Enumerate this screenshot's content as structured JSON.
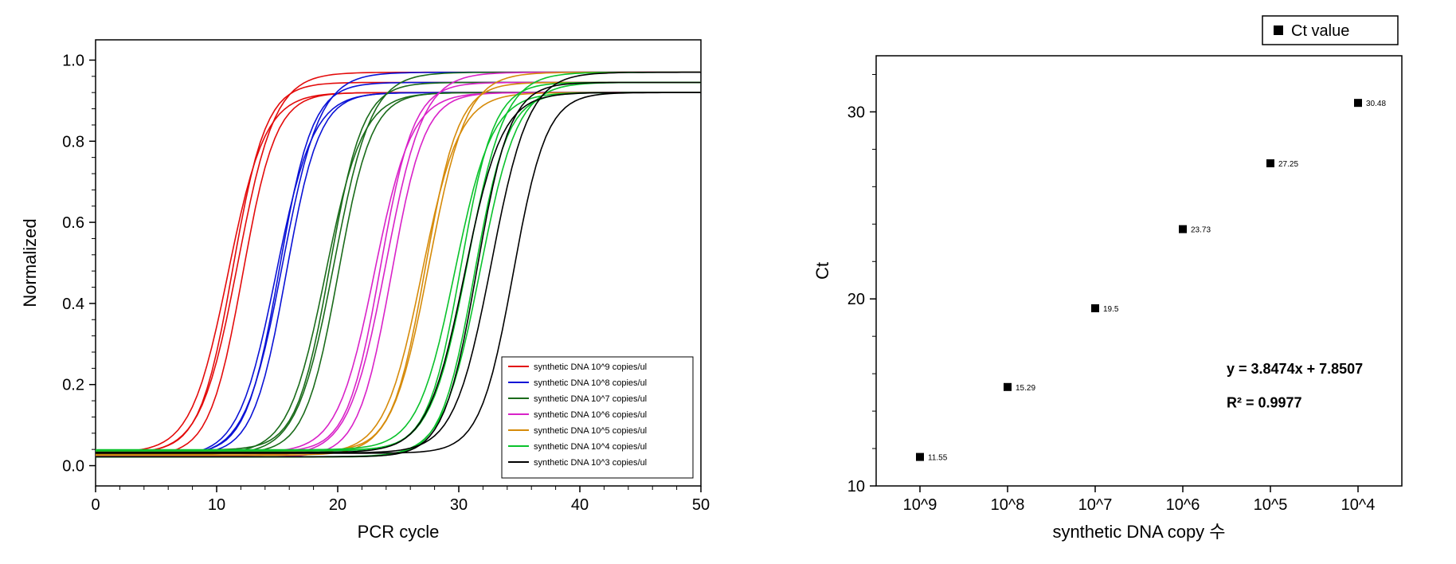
{
  "left_chart": {
    "type": "line",
    "xlabel": "PCR cycle",
    "ylabel": "Normalized",
    "label_fontsize": 22,
    "tick_fontsize": 20,
    "xlim": [
      0,
      50
    ],
    "ylim": [
      -0.05,
      1.05
    ],
    "xtick_step": 10,
    "ytick_step": 0.2,
    "plot_bg": "#ffffff",
    "axis_color": "#000000",
    "line_width": 1.6,
    "series": [
      {
        "label": "synthetic DNA 10^9 copies/ul",
        "color": "#e30b0b",
        "ct": 11.55,
        "replicate_offsets": [
          -0.6,
          -0.2,
          0.2,
          0.6
        ]
      },
      {
        "label": "synthetic DNA 10^8 copies/ul",
        "color": "#0a12d6",
        "ct": 15.29,
        "replicate_offsets": [
          -0.4,
          -0.1,
          0.15,
          0.45
        ]
      },
      {
        "label": "synthetic DNA 10^7 copies/ul",
        "color": "#1a6b1a",
        "ct": 19.5,
        "replicate_offsets": [
          -0.5,
          -0.15,
          0.2,
          0.55
        ]
      },
      {
        "label": "synthetic DNA 10^6 copies/ul",
        "color": "#d922c8",
        "ct": 23.73,
        "replicate_offsets": [
          -0.7,
          -0.2,
          0.25,
          0.7
        ]
      },
      {
        "label": "synthetic DNA 10^5 copies/ul",
        "color": "#d68b0a",
        "ct": 27.25,
        "replicate_offsets": [
          -0.3,
          0,
          0.3
        ]
      },
      {
        "label": "synthetic DNA 10^4 copies/ul",
        "color": "#0ac22c",
        "ct": 30.48,
        "replicate_offsets": [
          -0.8,
          -0.3,
          0.25,
          0.8,
          1.3
        ]
      },
      {
        "label": "synthetic DNA 10^3 copies/ul",
        "color": "#000000",
        "ct": 31.5,
        "replicate_offsets": [
          -1.0,
          0,
          1.2,
          3.0
        ]
      }
    ],
    "legend": {
      "border_color": "#000000",
      "bg": "#ffffff",
      "item_fontsize": 11
    }
  },
  "right_chart": {
    "type": "scatter",
    "xlabel": "synthetic DNA copy 수",
    "ylabel": "Ct",
    "label_fontsize": 22,
    "tick_fontsize": 20,
    "x_categories": [
      "10^9",
      "10^8",
      "10^7",
      "10^6",
      "10^5",
      "10^4"
    ],
    "ylim": [
      10,
      33
    ],
    "yticks": [
      10,
      20,
      30
    ],
    "points": [
      {
        "x_cat": "10^9",
        "y": 11.55,
        "label": "11.55"
      },
      {
        "x_cat": "10^8",
        "y": 15.29,
        "label": "15.29"
      },
      {
        "x_cat": "10^7",
        "y": 19.5,
        "label": "19.5"
      },
      {
        "x_cat": "10^6",
        "y": 23.73,
        "label": "23.73"
      },
      {
        "x_cat": "10^5",
        "y": 27.25,
        "label": "27.25"
      },
      {
        "x_cat": "10^4",
        "y": 30.48,
        "label": "30.48"
      }
    ],
    "marker": {
      "shape": "square",
      "size": 10,
      "color": "#000000"
    },
    "equation": "y = 3.8474x + 7.8507",
    "r2": "R² = 0.9977",
    "eq_fontsize": 18,
    "legend": {
      "label": "Ct value",
      "marker": "■",
      "border": "#000000",
      "fontsize": 20
    },
    "axis_color": "#000000",
    "plot_bg": "#ffffff"
  }
}
